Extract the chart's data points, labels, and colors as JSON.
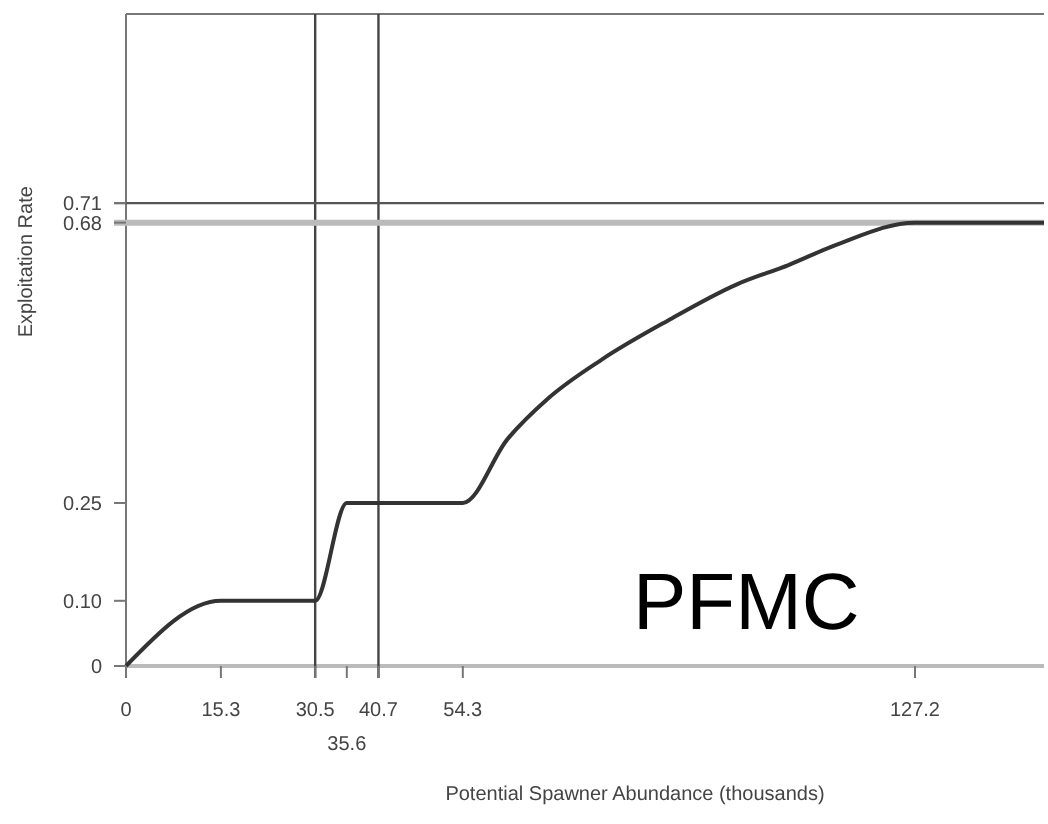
{
  "chart_data": {
    "type": "line",
    "xlabel": "Potential Spawner Abundance (thousands)",
    "ylabel": "Exploitation Rate",
    "x": [
      0,
      15.3,
      30.5,
      35.6,
      54.3,
      61.5,
      68,
      76.7,
      87.4,
      98.4,
      106.8,
      114.5,
      127.2,
      148
    ],
    "series": [
      {
        "color": "#333333",
        "values": [
          0,
          0.1,
          0.1,
          0.25,
          0.25,
          0.348,
          0.41,
          0.47,
          0.53,
          0.585,
          0.615,
          0.646,
          0.68,
          0.68
        ]
      }
    ],
    "xlim": [
      0,
      148
    ],
    "ylim": [
      0,
      1
    ],
    "xticks": [
      0,
      15.3,
      30.5,
      {
        "value": 35.6,
        "label": null
      },
      40.7,
      54.3,
      127.2
    ],
    "yticks": [
      0,
      {
        "value": 0.1,
        "label": "0.10"
      },
      0.25,
      0.68,
      0.71
    ],
    "ref_lines": [
      {
        "axis": "x",
        "value": 30.5,
        "color": "#444444"
      },
      {
        "axis": "x",
        "value": 40.7,
        "color": "#444444"
      },
      {
        "axis": "y",
        "value": 0.71,
        "color": "#555555"
      },
      {
        "axis": "y",
        "value": 0.68,
        "color": "#bbbbbb"
      }
    ],
    "annotations": [
      "PFMC",
      "35.6"
    ],
    "grid": false,
    "marker": "none",
    "line_style": "solid"
  }
}
